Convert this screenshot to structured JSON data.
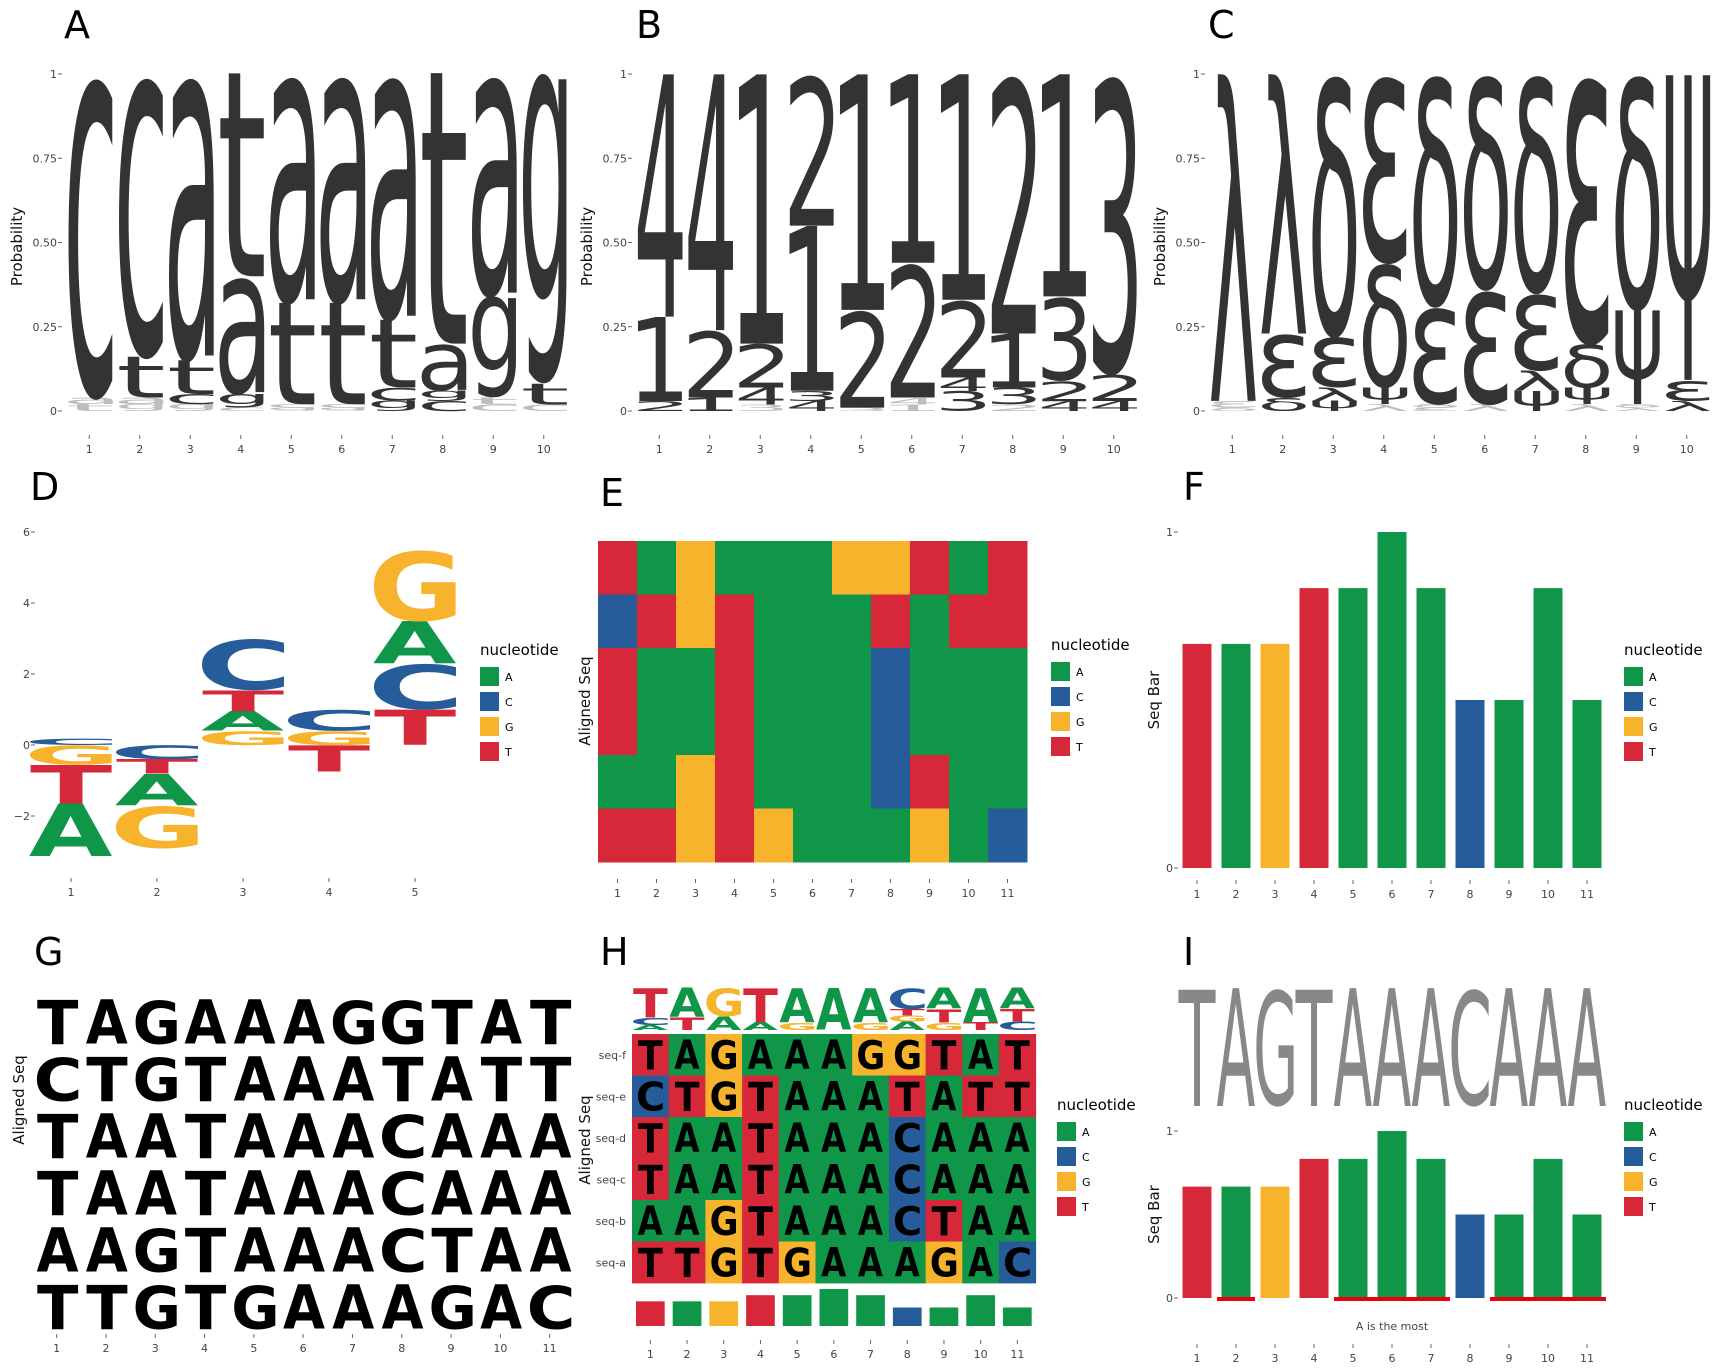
{
  "colors": {
    "A": "#109648",
    "C": "#255C99",
    "G": "#F7B32B",
    "T": "#D62839",
    "dark": "#333333",
    "grey": "#888888",
    "note": "#e8000b"
  },
  "chart_data": [
    {
      "panel": "A",
      "type": "sequence-logo",
      "ylabel": "Probability",
      "yticks": [
        "0",
        "0.25",
        "0.50",
        "0.75",
        "1"
      ],
      "positions": [
        "1",
        "2",
        "3",
        "4",
        "5",
        "6",
        "7",
        "8",
        "9",
        "10"
      ],
      "columns": [
        [
          [
            "t",
            0.02
          ],
          [
            "a",
            0.02
          ],
          [
            "c",
            0.96
          ]
        ],
        [
          [
            "g",
            0.02
          ],
          [
            "a",
            0.02
          ],
          [
            "t",
            0.12
          ],
          [
            "c",
            0.84
          ]
        ],
        [
          [
            "g",
            0.02
          ],
          [
            "c",
            0.03
          ],
          [
            "t",
            0.1
          ],
          [
            "a",
            0.85
          ]
        ],
        [
          [
            "c",
            0.01
          ],
          [
            "g",
            0.04
          ],
          [
            "a",
            0.35
          ],
          [
            "t",
            0.6
          ]
        ],
        [
          [
            "g",
            0.01
          ],
          [
            "c",
            0.01
          ],
          [
            "t",
            0.3
          ],
          [
            "a",
            0.68
          ]
        ],
        [
          [
            "g",
            0.01
          ],
          [
            "c",
            0.01
          ],
          [
            "t",
            0.3
          ],
          [
            "a",
            0.68
          ]
        ],
        [
          [
            "g",
            0.03
          ],
          [
            "c",
            0.04
          ],
          [
            "t",
            0.2
          ],
          [
            "a",
            0.73
          ]
        ],
        [
          [
            "c",
            0.03
          ],
          [
            "g",
            0.03
          ],
          [
            "a",
            0.14
          ],
          [
            "t",
            0.8
          ]
        ],
        [
          [
            "c",
            0.02
          ],
          [
            "t",
            0.02
          ],
          [
            "g",
            0.3
          ],
          [
            "a",
            0.66
          ]
        ],
        [
          [
            "c",
            0.02
          ],
          [
            "t",
            0.06
          ],
          [
            "g",
            0.92
          ]
        ]
      ]
    },
    {
      "panel": "B",
      "type": "sequence-logo",
      "ylabel": "Probability",
      "yticks": [
        "0",
        "0.25",
        "0.50",
        "0.75",
        "1"
      ],
      "positions": [
        "1",
        "2",
        "3",
        "4",
        "5",
        "6",
        "7",
        "8",
        "9",
        "10"
      ],
      "columns": [
        [
          [
            "2",
            0.03
          ],
          [
            "1",
            0.25
          ],
          [
            "4",
            0.72
          ]
        ],
        [
          [
            "1",
            0.04
          ],
          [
            "2",
            0.2
          ],
          [
            "4",
            0.76
          ]
        ],
        [
          [
            "3",
            0.02
          ],
          [
            "4",
            0.05
          ],
          [
            "2",
            0.13
          ],
          [
            "1",
            0.8
          ]
        ],
        [
          [
            "4",
            0.03
          ],
          [
            "3",
            0.03
          ],
          [
            "1",
            0.49
          ],
          [
            "2",
            0.45
          ]
        ],
        [
          [
            "3",
            0.01
          ],
          [
            "2",
            0.29
          ],
          [
            "1",
            0.7
          ]
        ],
        [
          [
            "1",
            0.02
          ],
          [
            "4",
            0.02
          ],
          [
            "2",
            0.4
          ],
          [
            "1",
            0.56
          ]
        ],
        [
          [
            "3",
            0.06
          ],
          [
            "4",
            0.04
          ],
          [
            "2",
            0.23
          ],
          [
            "1",
            0.67
          ]
        ],
        [
          [
            "2",
            0.02
          ],
          [
            "3",
            0.05
          ],
          [
            "1",
            0.16
          ],
          [
            "2",
            0.77
          ]
        ],
        [
          [
            "4",
            0.03
          ],
          [
            "2",
            0.06
          ],
          [
            "3",
            0.25
          ],
          [
            "1",
            0.66
          ]
        ],
        [
          [
            "4",
            0.03
          ],
          [
            "2",
            0.08
          ],
          [
            "3",
            0.89
          ]
        ]
      ]
    },
    {
      "panel": "C",
      "type": "sequence-logo",
      "ylabel": "Probability",
      "yticks": [
        "0",
        "0.25",
        "0.50",
        "0.75",
        "1"
      ],
      "positions": [
        "1",
        "2",
        "3",
        "4",
        "5",
        "6",
        "7",
        "8",
        "9",
        "10"
      ],
      "columns": [
        [
          [
            "δ",
            0.01
          ],
          [
            "ε",
            0.02
          ],
          [
            "λ",
            0.97
          ]
        ],
        [
          [
            "δ",
            0.04
          ],
          [
            "ε",
            0.19
          ],
          [
            "λ",
            0.77
          ]
        ],
        [
          [
            "ψ",
            0.03
          ],
          [
            "λ",
            0.04
          ],
          [
            "ε",
            0.15
          ],
          [
            "δ",
            0.78
          ]
        ],
        [
          [
            "λ",
            0.02
          ],
          [
            "ψ",
            0.05
          ],
          [
            "δ",
            0.37
          ],
          [
            "ε",
            0.56
          ]
        ],
        [
          [
            "ε",
            0.01
          ],
          [
            "δ",
            0.01
          ],
          [
            "ε",
            0.29
          ],
          [
            "δ",
            0.69
          ]
        ],
        [
          [
            "λ",
            0.02
          ],
          [
            "ε",
            0.34
          ],
          [
            "δ",
            0.64
          ]
        ],
        [
          [
            "ψ",
            0.06
          ],
          [
            "λ",
            0.06
          ],
          [
            "ε",
            0.23
          ],
          [
            "δ",
            0.65
          ]
        ],
        [
          [
            "λ",
            0.02
          ],
          [
            "ψ",
            0.05
          ],
          [
            "δ",
            0.13
          ],
          [
            "ε",
            0.8
          ]
        ],
        [
          [
            "λ",
            0.01
          ],
          [
            "δ",
            0.01
          ],
          [
            "ψ",
            0.28
          ],
          [
            "δ",
            0.7
          ]
        ],
        [
          [
            "λ",
            0.03
          ],
          [
            "ε",
            0.06
          ],
          [
            "ψ",
            0.91
          ]
        ]
      ]
    },
    {
      "panel": "D",
      "type": "enrichment-logo",
      "legend_title": "nucleotide",
      "legend": [
        "A",
        "C",
        "G",
        "T"
      ],
      "yticks": [
        "−2",
        "0",
        "2",
        "4",
        "6"
      ],
      "positions": [
        "1",
        "2",
        "3",
        "4",
        "5"
      ],
      "columns": [
        {
          "pos": [
            [
              "C",
              0.18
            ]
          ],
          "neg": [
            [
              "G",
              0.55
            ],
            [
              "T",
              1.1
            ],
            [
              "A",
              1.5
            ]
          ]
        },
        {
          "pos": [],
          "neg": [
            [
              "C",
              0.4
            ],
            [
              "T",
              0.4
            ],
            [
              "A",
              0.9
            ],
            [
              "G",
              1.2
            ]
          ]
        },
        {
          "pos": [
            [
              "G",
              0.4
            ],
            [
              "A",
              0.55
            ],
            [
              "T",
              0.6
            ],
            [
              "C",
              1.45
            ]
          ],
          "neg": []
        },
        {
          "pos": [
            [
              "G",
              0.4
            ],
            [
              "C",
              0.6
            ]
          ],
          "neg": [
            [
              "T",
              0.75
            ]
          ]
        },
        {
          "pos": [
            [
              "T",
              1.0
            ],
            [
              "C",
              1.3
            ],
            [
              "A",
              1.2
            ],
            [
              "G",
              2.0
            ]
          ],
          "neg": []
        }
      ]
    },
    {
      "panel": "E",
      "type": "heatmap",
      "ylabel": "Aligned Seq",
      "legend_title": "nucleotide",
      "legend": [
        "A",
        "C",
        "G",
        "T"
      ],
      "positions": [
        "1",
        "2",
        "3",
        "4",
        "5",
        "6",
        "7",
        "8",
        "9",
        "10",
        "11"
      ]
    },
    {
      "panel": "F",
      "type": "bar",
      "ylabel": "Seq Bar",
      "legend_title": "nucleotide",
      "legend": [
        "A",
        "C",
        "G",
        "T"
      ],
      "yticks": [
        "0",
        "1"
      ],
      "positions": [
        "1",
        "2",
        "3",
        "4",
        "5",
        "6",
        "7",
        "8",
        "9",
        "10",
        "11"
      ],
      "values": [
        0.667,
        0.667,
        0.667,
        0.833,
        0.833,
        1.0,
        0.833,
        0.5,
        0.5,
        0.833,
        0.5
      ],
      "bar_letters": [
        "T",
        "A",
        "G",
        "T",
        "A",
        "A",
        "A",
        "C",
        "A",
        "A",
        "A"
      ]
    },
    {
      "panel": "G",
      "type": "text-alignment",
      "ylabel": "Aligned Seq",
      "positions": [
        "1",
        "2",
        "3",
        "4",
        "5",
        "6",
        "7",
        "8",
        "9",
        "10",
        "11"
      ]
    },
    {
      "panel": "H",
      "type": "alignment-with-logo",
      "ylabel": "Aligned Seq",
      "legend_title": "nucleotide",
      "legend": [
        "A",
        "C",
        "G",
        "T"
      ],
      "positions": [
        "1",
        "2",
        "3",
        "4",
        "5",
        "6",
        "7",
        "8",
        "9",
        "10",
        "11"
      ],
      "row_labels": [
        "seq-f",
        "seq-e",
        "seq-d",
        "seq-c",
        "seq-b",
        "seq-a"
      ],
      "logo": [
        [
          [
            "A",
            0.12
          ],
          [
            "C",
            0.18
          ],
          [
            "T",
            0.7
          ]
        ],
        [
          [
            "T",
            0.3
          ],
          [
            "A",
            0.7
          ]
        ],
        [
          [
            "A",
            0.33
          ],
          [
            "G",
            0.67
          ]
        ],
        [
          [
            "A",
            0.18
          ],
          [
            "T",
            0.82
          ]
        ],
        [
          [
            "G",
            0.18
          ],
          [
            "A",
            0.82
          ]
        ],
        [
          [
            "A",
            1.0
          ]
        ],
        [
          [
            "G",
            0.18
          ],
          [
            "A",
            0.82
          ]
        ],
        [
          [
            "A",
            0.2
          ],
          [
            "G",
            0.15
          ],
          [
            "T",
            0.15
          ],
          [
            "C",
            0.5
          ]
        ],
        [
          [
            "G",
            0.18
          ],
          [
            "T",
            0.32
          ],
          [
            "A",
            0.5
          ]
        ],
        [
          [
            "T",
            0.18
          ],
          [
            "A",
            0.82
          ]
        ],
        [
          [
            "C",
            0.2
          ],
          [
            "T",
            0.3
          ],
          [
            "A",
            0.5
          ]
        ]
      ]
    },
    {
      "panel": "I",
      "type": "bar-with-logo",
      "ylabel": "Seq Bar",
      "legend_title": "nucleotide",
      "legend": [
        "A",
        "C",
        "G",
        "T"
      ],
      "yticks": [
        "0",
        "1"
      ],
      "positions": [
        "1",
        "2",
        "3",
        "4",
        "5",
        "6",
        "7",
        "8",
        "9",
        "10",
        "11"
      ],
      "consensus": [
        "T",
        "A",
        "G",
        "T",
        "A",
        "A",
        "A",
        "C",
        "A",
        "A",
        "A"
      ],
      "values": [
        0.667,
        0.667,
        0.667,
        0.833,
        0.833,
        1.0,
        0.833,
        0.5,
        0.5,
        0.833,
        0.5
      ],
      "annotation": "A is the most",
      "highlight_ranges": [
        [
          2,
          2
        ],
        [
          5,
          7
        ],
        [
          9,
          11
        ]
      ]
    }
  ],
  "alignment": [
    "TAGAAAGGTAT",
    "CTGTAAATATT",
    "TAATAAACAAA",
    "TAATAAACAAA",
    "AAGTAAACTAA",
    "TTGTGAAAGAC"
  ],
  "panel_labels": [
    "A",
    "B",
    "C",
    "D",
    "E",
    "F",
    "G",
    "H",
    "I"
  ]
}
